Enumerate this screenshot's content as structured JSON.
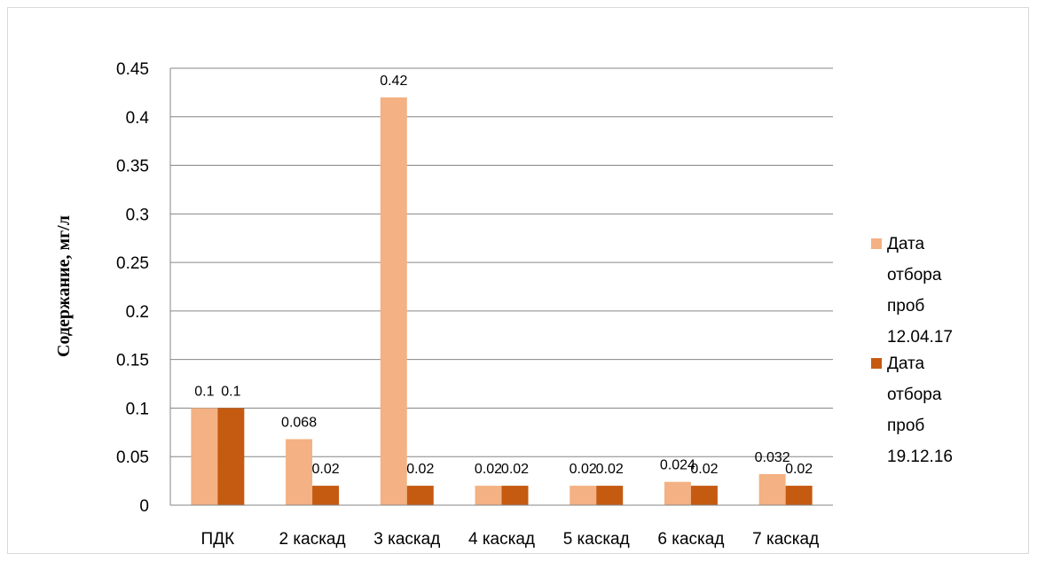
{
  "chart_data": {
    "type": "bar",
    "title": "",
    "xlabel": "",
    "ylabel": "Содержание, мг/л",
    "categories": [
      "ПДК",
      "2 каскад",
      "3 каскад",
      "4 каскад",
      "5 каскад",
      "6 каскад",
      "7 каскад"
    ],
    "series": [
      {
        "name": "Дата отбора проб 12.04.17",
        "legend_lines": [
          "Дата",
          "отбора",
          "проб",
          "12.04.17"
        ],
        "color": "#F4B183",
        "values": [
          0.1,
          0.068,
          0.42,
          0.02,
          0.02,
          0.024,
          0.032
        ],
        "labels": [
          "0.1",
          "0.068",
          "0.42",
          "0.02",
          "0.02",
          "0.024",
          "0.032"
        ]
      },
      {
        "name": "Дата отбора проб 19.12.16",
        "legend_lines": [
          "Дата",
          "отбора",
          "проб",
          "19.12.16"
        ],
        "color": "#C55A11",
        "values": [
          0.1,
          0.02,
          0.02,
          0.02,
          0.02,
          0.02,
          0.02
        ],
        "labels": [
          "0.1",
          "0.02",
          "0.02",
          "0.02",
          "0.02",
          "0.02",
          "0.02"
        ]
      }
    ],
    "ylim": [
      0,
      0.45
    ],
    "yticks": [
      "0",
      "0.05",
      "0.1",
      "0.15",
      "0.2",
      "0.25",
      "0.3",
      "0.35",
      "0.4",
      "0.45"
    ],
    "grid": true,
    "legend_position": "right"
  }
}
